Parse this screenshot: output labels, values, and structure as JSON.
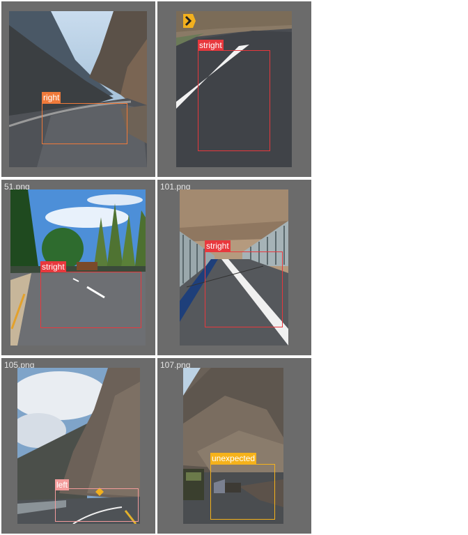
{
  "panels": [
    {
      "filename": "",
      "label": "right",
      "label_color": "#f07a3a"
    },
    {
      "filename": "",
      "label": "stright",
      "label_color": "#e8383d"
    },
    {
      "filename": "51.png",
      "label": "stright",
      "label_color": "#e8383d"
    },
    {
      "filename": "101.png",
      "label": "stright",
      "label_color": "#e8383d"
    },
    {
      "filename": "105.png",
      "label": "left",
      "label_color": "#f49c9c"
    },
    {
      "filename": "107.png",
      "label": "unexpected",
      "label_color": "#f5b21b"
    }
  ]
}
